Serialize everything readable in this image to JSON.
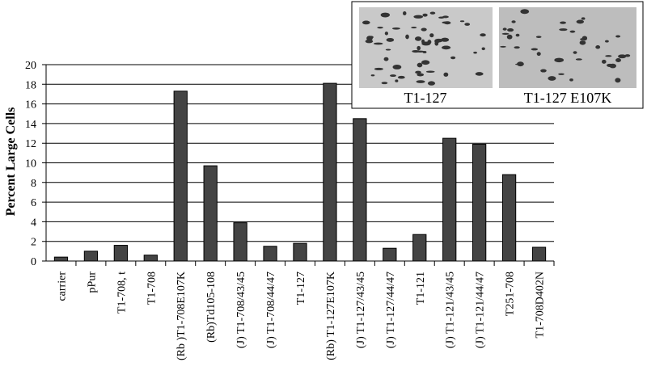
{
  "chart_data": {
    "type": "bar",
    "y_label": "Percent Large Cells",
    "categories": [
      "carrier",
      "pPur",
      "T1-708, t",
      "T1-708",
      "(Rb )T1-708E107K",
      "(Rb)Td105-108",
      "(J) T1-708/43/45",
      "(J) T1-708/44/47",
      "T1-127",
      "(Rb) T1-127E107K",
      "(J) T1-127/43/45",
      "(J) T1-127/44/47",
      "T1-121",
      "(J) T1-121/43/45",
      "(J) T1-121/44/47",
      "T251-708",
      "T1-708D402N"
    ],
    "values": [
      0.4,
      1.0,
      1.6,
      0.6,
      17.3,
      9.7,
      3.9,
      1.5,
      1.8,
      18.1,
      14.5,
      1.3,
      2.7,
      12.5,
      11.9,
      8.8,
      1.4
    ],
    "color": "#444444",
    "ylim": [
      0,
      20
    ],
    "yticks": [
      0,
      2,
      4,
      6,
      8,
      10,
      12,
      14,
      16,
      18,
      20
    ],
    "grid": true,
    "inset_labels": [
      "T1-127",
      "T1-127 E107K"
    ]
  }
}
